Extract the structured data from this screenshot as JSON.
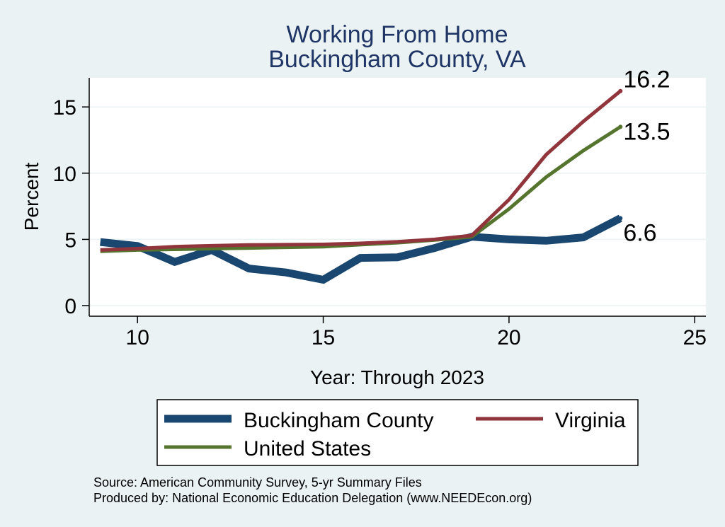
{
  "chart_data": {
    "type": "line",
    "title": [
      "Working From Home",
      "Buckingham County, VA"
    ],
    "xlabel": "Year: Through 2023",
    "ylabel": "Percent",
    "xlim": [
      8.7,
      25.3
    ],
    "ylim": [
      -0.8,
      17.2
    ],
    "xticks": [
      10,
      15,
      20,
      25
    ],
    "yticks": [
      0,
      5,
      10,
      15
    ],
    "grid": "horizontal",
    "legend_position": "bottom",
    "series": [
      {
        "name": "Buckingham County",
        "color": "#1a476f",
        "x": [
          9,
          10,
          11,
          12,
          13,
          14,
          15,
          16,
          17,
          18,
          19,
          20,
          21,
          22,
          23
        ],
        "values": [
          4.8,
          4.5,
          3.3,
          4.2,
          2.8,
          2.5,
          1.95,
          3.6,
          3.65,
          4.35,
          5.2,
          5.0,
          4.9,
          5.15,
          6.6
        ],
        "end_label": "6.6"
      },
      {
        "name": "Virginia",
        "color": "#90353b",
        "x": [
          9,
          10,
          11,
          12,
          13,
          14,
          15,
          16,
          17,
          18,
          19,
          20,
          21,
          22,
          23
        ],
        "values": [
          4.2,
          4.3,
          4.45,
          4.52,
          4.58,
          4.6,
          4.62,
          4.7,
          4.82,
          5.0,
          5.3,
          8.0,
          11.4,
          13.9,
          16.2
        ],
        "end_label": "16.2"
      },
      {
        "name": "United States",
        "color": "#55752f",
        "x": [
          9,
          10,
          11,
          12,
          13,
          14,
          15,
          16,
          17,
          18,
          19,
          20,
          21,
          22,
          23
        ],
        "values": [
          4.1,
          4.2,
          4.25,
          4.3,
          4.35,
          4.4,
          4.45,
          4.6,
          4.75,
          4.95,
          5.2,
          7.3,
          9.7,
          11.7,
          13.5
        ],
        "end_label": "13.5"
      }
    ]
  },
  "notes": [
    "Source: American Community Survey, 5-yr Summary Files",
    "Produced by: National Economic Education Delegation (www.NEEDEcon.org)"
  ]
}
